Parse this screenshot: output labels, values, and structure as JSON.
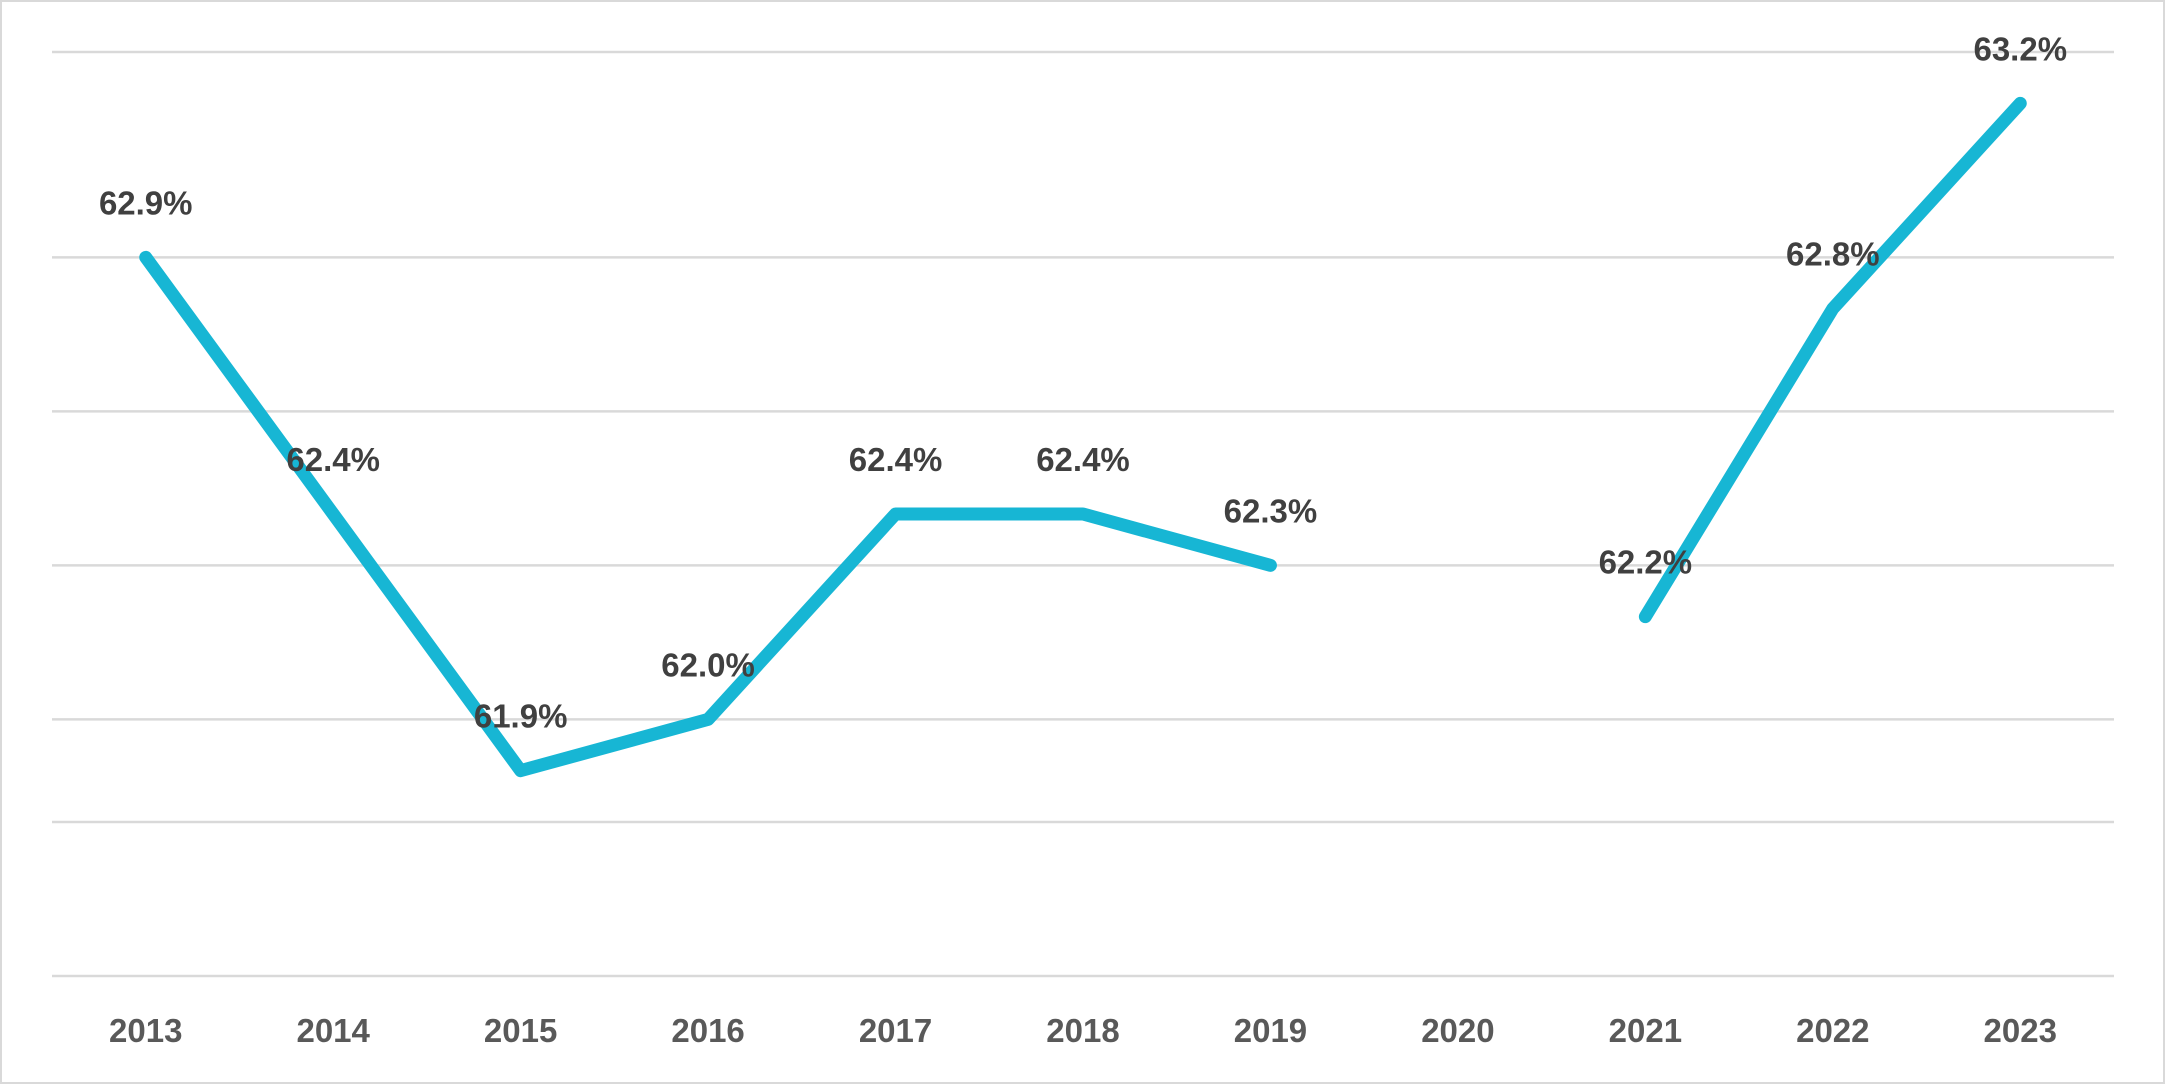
{
  "chart_data": {
    "type": "line",
    "title": "",
    "xlabel": "",
    "ylabel": "",
    "categories": [
      "2013",
      "2014",
      "2015",
      "2016",
      "2017",
      "2018",
      "2019",
      "2020",
      "2021",
      "2022",
      "2023"
    ],
    "series": [
      {
        "values": [
          62.9,
          62.4,
          61.9,
          62.0,
          62.4,
          62.4,
          62.3,
          null,
          62.2,
          62.8,
          63.2
        ],
        "labels": [
          "62.9%",
          "62.4%",
          "61.9%",
          "62.0%",
          "62.4%",
          "62.4%",
          "62.3%",
          "",
          "62.2%",
          "62.8%",
          "63.2%"
        ],
        "color": "#17b6d4"
      }
    ],
    "ylim": [
      61.5,
      63.3
    ],
    "y_gridlines": [
      61.5,
      61.8,
      62.0,
      62.3,
      62.6,
      62.9,
      63.3
    ],
    "y_axis_labels_shown": false,
    "grid": true,
    "legend": "none",
    "gridline_color": "#d9d9d9"
  }
}
